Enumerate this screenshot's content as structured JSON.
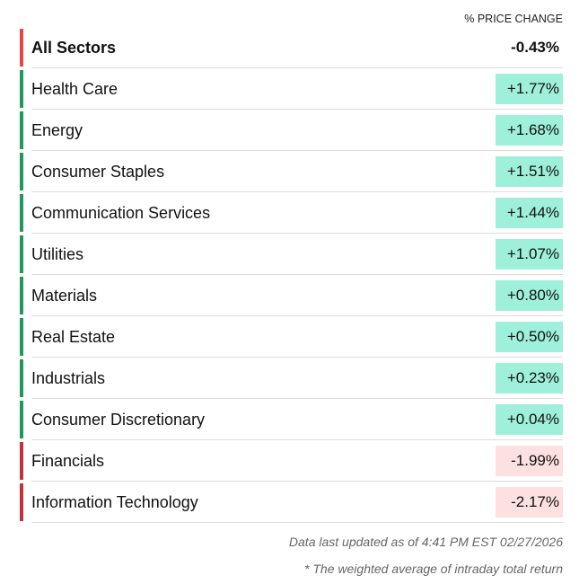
{
  "header": {
    "column_label": "% PRICE CHANGE"
  },
  "summary": {
    "name": "All Sectors",
    "change": "-0.43%"
  },
  "table": {
    "rows": [
      [
        "Health Care",
        "+1.77%"
      ],
      [
        "Energy",
        "+1.68%"
      ],
      [
        "Consumer Staples",
        "+1.51%"
      ],
      [
        "Communication Services",
        "+1.44%"
      ],
      [
        "Utilities",
        "+1.07%"
      ],
      [
        "Materials",
        "+0.80%"
      ],
      [
        "Real Estate",
        "+0.50%"
      ],
      [
        "Industrials",
        "+0.23%"
      ],
      [
        "Consumer Discretionary",
        "+0.04%"
      ],
      [
        "Financials",
        "-1.99%"
      ],
      [
        "Information Technology",
        "-2.17%"
      ]
    ]
  },
  "footer": {
    "updated": "Data last updated as of 4:41 PM EST 02/27/2026",
    "note": "* The weighted average of intraday total return"
  }
}
